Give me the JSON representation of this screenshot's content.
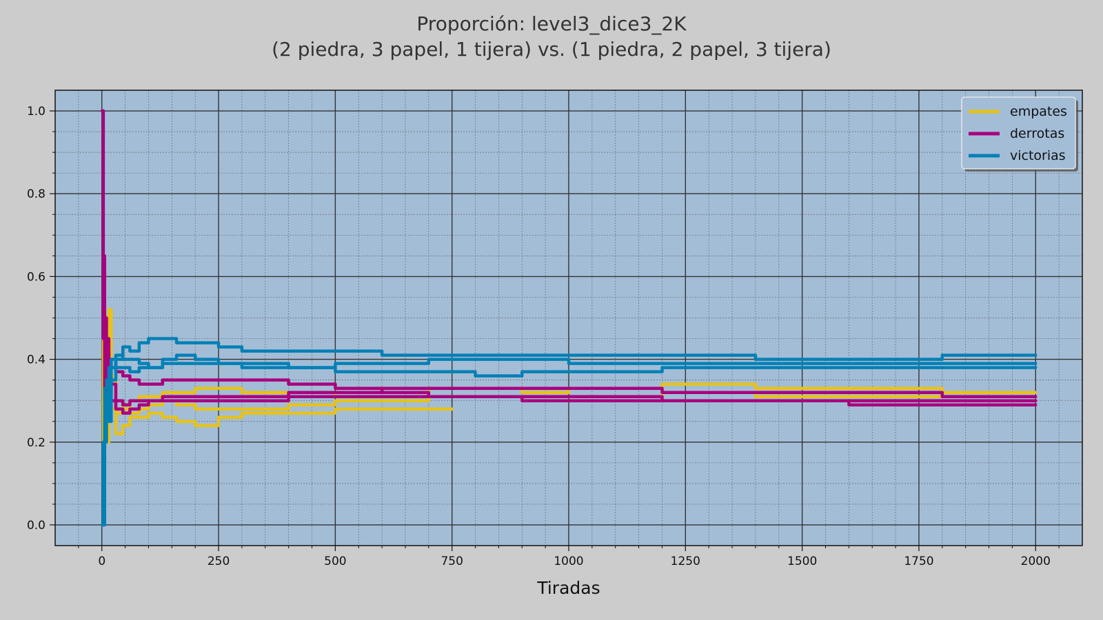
{
  "chart_data": {
    "type": "line",
    "title": "Proporción: level3_dice3_2K",
    "subtitle": "(2 piedra, 3 papel, 1 tijera) vs. (1 piedra, 2 papel, 3 tijera)",
    "xlabel": "Tiradas",
    "ylabel": "",
    "xlim": [
      -100,
      2100
    ],
    "ylim": [
      -0.05,
      1.05
    ],
    "x_ticks": [
      0,
      250,
      500,
      750,
      1000,
      1250,
      1500,
      1750,
      2000
    ],
    "y_ticks": [
      0.0,
      0.2,
      0.4,
      0.6,
      0.8,
      1.0
    ],
    "y_tick_labels": [
      "0.0",
      "0.2",
      "0.4",
      "0.6",
      "0.8",
      "1.0"
    ],
    "grid": true,
    "minor_grid": true,
    "legend_position": "top-right",
    "colors": {
      "plot_background": "#a3bdd7",
      "figure_background": "#cccccc",
      "empates": "#e6c21a",
      "derrotas": "#a8007e",
      "victorias": "#0480b5"
    },
    "legend": [
      {
        "name": "empates",
        "color": "#e6c21a"
      },
      {
        "name": "derrotas",
        "color": "#a8007e"
      },
      {
        "name": "victorias",
        "color": "#0480b5"
      }
    ],
    "series": [
      {
        "label": "empates",
        "color": "#e6c21a",
        "x": [
          1,
          3,
          6,
          10,
          15,
          20,
          30,
          45,
          60,
          80,
          100,
          130,
          160,
          200,
          250,
          300,
          400,
          500,
          600,
          700,
          750
        ],
        "y": [
          0.0,
          0.6,
          0.2,
          0.45,
          0.52,
          0.28,
          0.22,
          0.24,
          0.26,
          0.26,
          0.27,
          0.26,
          0.25,
          0.24,
          0.26,
          0.27,
          0.27,
          0.28,
          0.28,
          0.28,
          0.28
        ]
      },
      {
        "label": "empates",
        "color": "#e6c21a",
        "x": [
          1,
          3,
          6,
          10,
          15,
          20,
          30,
          45,
          60,
          80,
          100,
          130,
          160,
          200,
          300,
          400,
          500,
          600,
          700,
          800,
          900,
          1000,
          1100,
          1200,
          1400,
          1600,
          1800,
          2000
        ],
        "y": [
          0.0,
          0.5,
          0.35,
          0.3,
          0.4,
          0.36,
          0.3,
          0.28,
          0.3,
          0.31,
          0.31,
          0.32,
          0.32,
          0.33,
          0.32,
          0.31,
          0.32,
          0.32,
          0.33,
          0.33,
          0.32,
          0.33,
          0.33,
          0.34,
          0.33,
          0.33,
          0.32,
          0.32
        ]
      },
      {
        "label": "empates",
        "color": "#e6c21a",
        "x": [
          1,
          3,
          6,
          10,
          15,
          20,
          30,
          45,
          60,
          80,
          100,
          130,
          160,
          200,
          300,
          400,
          500,
          600,
          700,
          800,
          900,
          1000,
          1100,
          1200,
          1400,
          1600,
          1800,
          2000
        ],
        "y": [
          0.0,
          0.3,
          0.25,
          0.2,
          0.28,
          0.3,
          0.27,
          0.28,
          0.27,
          0.28,
          0.29,
          0.3,
          0.29,
          0.28,
          0.28,
          0.29,
          0.3,
          0.3,
          0.31,
          0.31,
          0.31,
          0.31,
          0.31,
          0.32,
          0.31,
          0.31,
          0.31,
          0.31
        ]
      },
      {
        "label": "derrotas",
        "color": "#a8007e",
        "x": [
          1,
          3,
          6,
          10,
          15,
          20,
          30,
          45,
          60,
          80,
          100,
          130,
          160,
          200,
          250,
          300,
          400,
          500,
          600,
          700,
          800,
          900,
          1000,
          1200,
          1400,
          1600,
          1800,
          2000
        ],
        "y": [
          1.0,
          0.65,
          0.5,
          0.42,
          0.4,
          0.38,
          0.37,
          0.36,
          0.35,
          0.34,
          0.34,
          0.35,
          0.35,
          0.35,
          0.35,
          0.35,
          0.34,
          0.33,
          0.32,
          0.31,
          0.31,
          0.3,
          0.3,
          0.3,
          0.3,
          0.29,
          0.29,
          0.29
        ]
      },
      {
        "label": "derrotas",
        "color": "#a8007e",
        "x": [
          1,
          3,
          6,
          10,
          15,
          20,
          30,
          45,
          60,
          80,
          100,
          130,
          160,
          200,
          250,
          300,
          400,
          500,
          600,
          700,
          800,
          900,
          1000,
          1200,
          1400,
          1600,
          1800,
          2000
        ],
        "y": [
          1.0,
          0.5,
          0.3,
          0.45,
          0.35,
          0.3,
          0.28,
          0.27,
          0.28,
          0.29,
          0.3,
          0.3,
          0.3,
          0.3,
          0.3,
          0.3,
          0.31,
          0.31,
          0.31,
          0.31,
          0.31,
          0.31,
          0.31,
          0.3,
          0.3,
          0.3,
          0.3,
          0.3
        ]
      },
      {
        "label": "derrotas",
        "color": "#a8007e",
        "x": [
          1,
          3,
          6,
          10,
          15,
          20,
          30,
          45,
          60,
          80,
          100,
          130,
          160,
          200,
          250,
          300,
          400,
          500,
          600,
          700,
          800,
          900,
          1000,
          1200,
          1400,
          1600,
          1800,
          2000
        ],
        "y": [
          1.0,
          0.45,
          0.35,
          0.3,
          0.32,
          0.34,
          0.3,
          0.29,
          0.3,
          0.3,
          0.3,
          0.31,
          0.31,
          0.31,
          0.31,
          0.31,
          0.32,
          0.32,
          0.33,
          0.33,
          0.33,
          0.33,
          0.33,
          0.32,
          0.32,
          0.32,
          0.31,
          0.31
        ]
      },
      {
        "label": "victorias",
        "color": "#0480b5",
        "x": [
          1,
          3,
          6,
          10,
          15,
          20,
          30,
          45,
          60,
          80,
          100,
          130,
          160,
          200,
          250,
          300,
          400,
          500,
          600,
          700,
          800,
          900,
          1000,
          1200,
          1400,
          1600,
          1800,
          2000
        ],
        "y": [
          0.0,
          0.0,
          0.2,
          0.3,
          0.25,
          0.35,
          0.4,
          0.43,
          0.42,
          0.44,
          0.45,
          0.45,
          0.44,
          0.44,
          0.43,
          0.42,
          0.42,
          0.42,
          0.41,
          0.41,
          0.41,
          0.41,
          0.41,
          0.41,
          0.4,
          0.4,
          0.41,
          0.41
        ]
      },
      {
        "label": "victorias",
        "color": "#0480b5",
        "x": [
          1,
          3,
          6,
          10,
          15,
          20,
          30,
          45,
          60,
          80,
          100,
          130,
          160,
          200,
          250,
          300,
          400,
          500,
          600,
          700,
          800,
          900,
          1000,
          1200,
          1400,
          1600,
          1800,
          2000
        ],
        "y": [
          0.0,
          0.2,
          0.33,
          0.35,
          0.3,
          0.38,
          0.41,
          0.4,
          0.4,
          0.39,
          0.38,
          0.4,
          0.41,
          0.4,
          0.39,
          0.38,
          0.38,
          0.37,
          0.37,
          0.37,
          0.36,
          0.37,
          0.37,
          0.38,
          0.38,
          0.38,
          0.38,
          0.38
        ]
      },
      {
        "label": "victorias",
        "color": "#0480b5",
        "x": [
          1,
          3,
          6,
          10,
          15,
          20,
          30,
          45,
          60,
          80,
          100,
          130,
          160,
          200,
          250,
          300,
          400,
          500,
          600,
          700,
          800,
          900,
          1000,
          1200,
          1400,
          1600,
          1800,
          2000
        ],
        "y": [
          0.0,
          0.1,
          0.25,
          0.32,
          0.38,
          0.4,
          0.38,
          0.38,
          0.37,
          0.38,
          0.38,
          0.39,
          0.39,
          0.39,
          0.39,
          0.39,
          0.38,
          0.39,
          0.39,
          0.4,
          0.4,
          0.4,
          0.39,
          0.39,
          0.39,
          0.39,
          0.39,
          0.39
        ]
      }
    ]
  }
}
